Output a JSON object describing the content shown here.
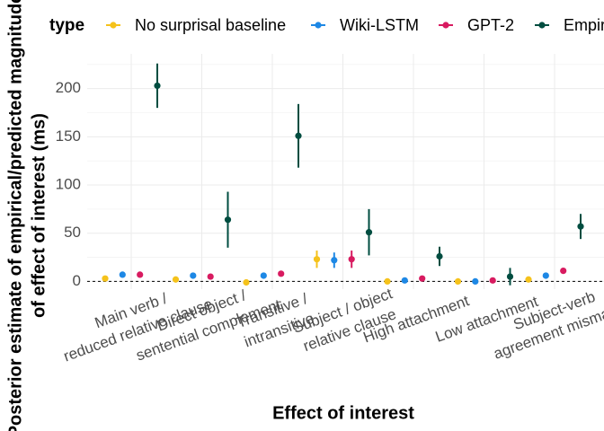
{
  "chart_data": {
    "type": "pointrange",
    "legend_title": "type",
    "x_label": "Effect of interest",
    "y_label": [
      "Posterior estimate of empirical/predicted magnitude",
      "of effect of interest (ms)"
    ],
    "categories": [
      [
        "Main verb /",
        "reduced relative clause"
      ],
      [
        "Direct object /",
        "sentential complement"
      ],
      [
        "Transitive /",
        "intransitive"
      ],
      [
        "Subject / object",
        "relative clause"
      ],
      [
        "High attachment"
      ],
      [
        "Low attachment"
      ],
      [
        "Subject-verb",
        "agreement mismatch"
      ]
    ],
    "series": [
      {
        "name": "No surprisal baseline",
        "color": "#f5c21b",
        "values": [
          3,
          2,
          -1,
          23,
          0,
          0,
          2
        ],
        "errors": [
          1,
          1,
          1,
          9,
          1,
          1,
          1
        ]
      },
      {
        "name": "Wiki-LSTM",
        "color": "#1e88e5",
        "values": [
          7,
          6,
          6,
          22,
          1,
          0,
          6
        ],
        "errors": [
          1,
          1,
          1,
          8,
          1,
          1,
          1
        ]
      },
      {
        "name": "GPT-2",
        "color": "#d81b60",
        "values": [
          7,
          5,
          8,
          23,
          3,
          1,
          11
        ],
        "errors": [
          1,
          1,
          2,
          9,
          1,
          1,
          1
        ]
      },
      {
        "name": "Empirical",
        "color": "#004d40",
        "values": [
          203,
          64,
          151,
          51,
          26,
          5,
          57
        ],
        "errors": [
          23,
          29,
          33,
          24,
          10,
          9,
          13
        ]
      }
    ],
    "hline": 0,
    "ylim": [
      -8,
      236
    ],
    "yticks": [
      0,
      50,
      100,
      150,
      200
    ],
    "minor_yticks": [
      25,
      75,
      125,
      175,
      225
    ],
    "grid": true
  }
}
